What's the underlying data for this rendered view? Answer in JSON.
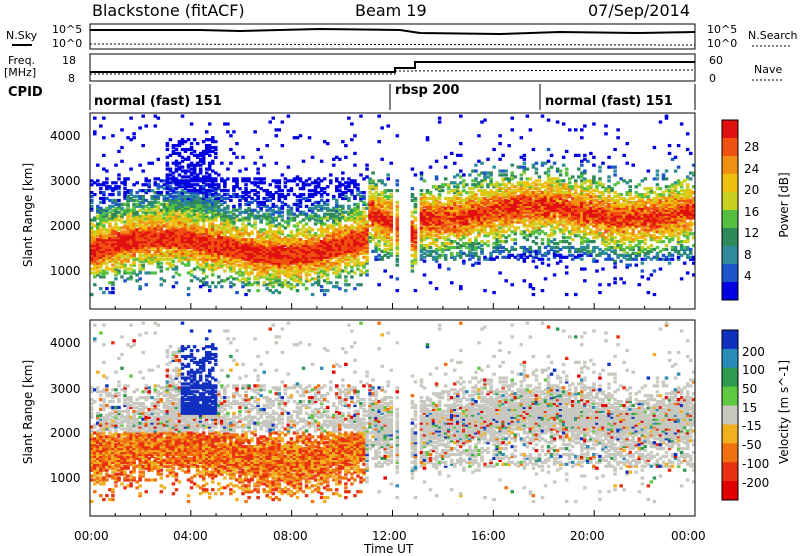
{
  "header": {
    "station": "Blackstone (fitACF)",
    "beam": "Beam 19",
    "date": "07/Sep/2014"
  },
  "noise_panel": {
    "left_label": "N.Sky",
    "right_label": "N.Search",
    "left_ticks": [
      "10^5",
      "10^0"
    ],
    "right_ticks": [
      "10^5",
      "10^0"
    ]
  },
  "freq_panel": {
    "left_label": "Freq.",
    "left_unit": "[MHz]",
    "right_label": "Nave",
    "left_ticks": [
      "18",
      "8"
    ],
    "right_ticks": [
      "60",
      "0"
    ]
  },
  "cpid_panel": {
    "label": "CPID",
    "segments": [
      {
        "name": "normal (fast) 151",
        "start_hour": 0,
        "end_hour": 12.0
      },
      {
        "name": "rbsp 200",
        "start_hour": 12.0,
        "end_hour": 18.0
      },
      {
        "name": "normal (fast) 151",
        "start_hour": 18.0,
        "end_hour": 24
      }
    ]
  },
  "chart_data": [
    {
      "type": "heatmap",
      "name": "power",
      "ylabel": "Slant Range [km]",
      "yticks": [
        "1000",
        "2000",
        "3000",
        "4000"
      ],
      "ylim": [
        0,
        4500
      ],
      "xlim_hours": [
        0,
        24
      ],
      "colorbar_label": "Power [dB]",
      "colorbar_ticks": [
        "4",
        "8",
        "12",
        "16",
        "20",
        "24",
        "28"
      ],
      "colorbar_colors": [
        "#0000e0",
        "#1b55c8",
        "#2f8a9a",
        "#2e8a5a",
        "#55c040",
        "#c8d020",
        "#f0c010",
        "#f09010",
        "#f05010",
        "#e01010"
      ],
      "colorbar_range": [
        0,
        32
      ]
    },
    {
      "type": "heatmap",
      "name": "velocity",
      "ylabel": "Slant Range [km]",
      "yticks": [
        "1000",
        "2000",
        "3000",
        "4000"
      ],
      "ylim": [
        0,
        4500
      ],
      "xlim_hours": [
        0,
        24
      ],
      "colorbar_label": "Velocity [m s^-1]",
      "colorbar_ticks": [
        "200",
        "100",
        "50",
        "15",
        "-15",
        "-50",
        "-100",
        "-200"
      ],
      "colorbar_colors": [
        "#1030c0",
        "#2a8ab8",
        "#2e9a50",
        "#60c840",
        "#c8c8c0",
        "#f0b020",
        "#f07010",
        "#e83010",
        "#e00000"
      ],
      "xticks": [
        "00:00",
        "04:00",
        "08:00",
        "12:00",
        "16:00",
        "20:00",
        "00:00"
      ],
      "xlabel": "Time UT"
    }
  ]
}
